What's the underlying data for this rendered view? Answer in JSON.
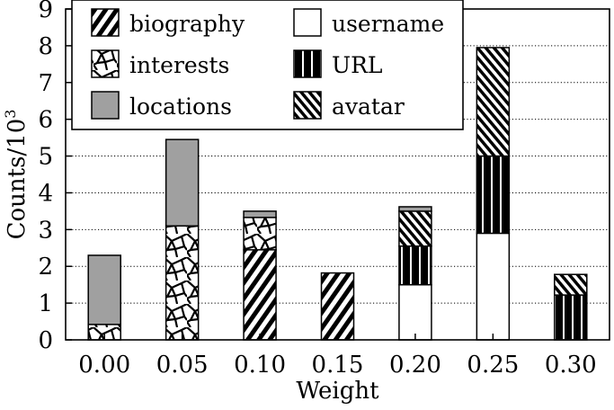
{
  "chart_data": {
    "type": "bar",
    "stacked": true,
    "xlabel": "Weight",
    "ylabel": "Counts/10",
    "ylabel_superscript": "3",
    "ylim": [
      0,
      9
    ],
    "yticks": [
      "0",
      "1",
      "2",
      "3",
      "4",
      "5",
      "6",
      "7",
      "8",
      "9"
    ],
    "categories": [
      "0.00",
      "0.05",
      "0.10",
      "0.15",
      "0.20",
      "0.25",
      "0.30"
    ],
    "grid": "horizontal-dotted",
    "legend_placement": "top-left",
    "series": [
      {
        "name": "username",
        "pattern": "white",
        "values": [
          0,
          0,
          0,
          0,
          1.5,
          2.9,
          0
        ]
      },
      {
        "name": "URL",
        "pattern": "vertical-stripes",
        "values": [
          0,
          0,
          0,
          0,
          1.05,
          2.1,
          1.22
        ]
      },
      {
        "name": "avatar",
        "pattern": "backslash-hatch",
        "values": [
          0,
          0,
          0,
          0,
          0.95,
          2.95,
          0.56
        ]
      },
      {
        "name": "biography",
        "pattern": "forward-diagonal",
        "values": [
          0,
          0,
          2.45,
          1.82,
          0,
          0,
          0
        ]
      },
      {
        "name": "interests",
        "pattern": "mosaic",
        "values": [
          0.42,
          3.1,
          0.88,
          0,
          0,
          0,
          0
        ]
      },
      {
        "name": "locations",
        "pattern": "gray",
        "values": [
          1.88,
          2.35,
          0.17,
          0,
          0.12,
          0,
          0
        ]
      }
    ],
    "legend": [
      {
        "name": "biography",
        "pattern": "forward-diagonal"
      },
      {
        "name": "username",
        "pattern": "white"
      },
      {
        "name": "interests",
        "pattern": "mosaic"
      },
      {
        "name": "URL",
        "pattern": "vertical-stripes"
      },
      {
        "name": "locations",
        "pattern": "gray"
      },
      {
        "name": "avatar",
        "pattern": "backslash-hatch"
      }
    ],
    "colors": {
      "gray": "#a0a0a0",
      "ink": "#000000",
      "background": "#ffffff"
    }
  }
}
